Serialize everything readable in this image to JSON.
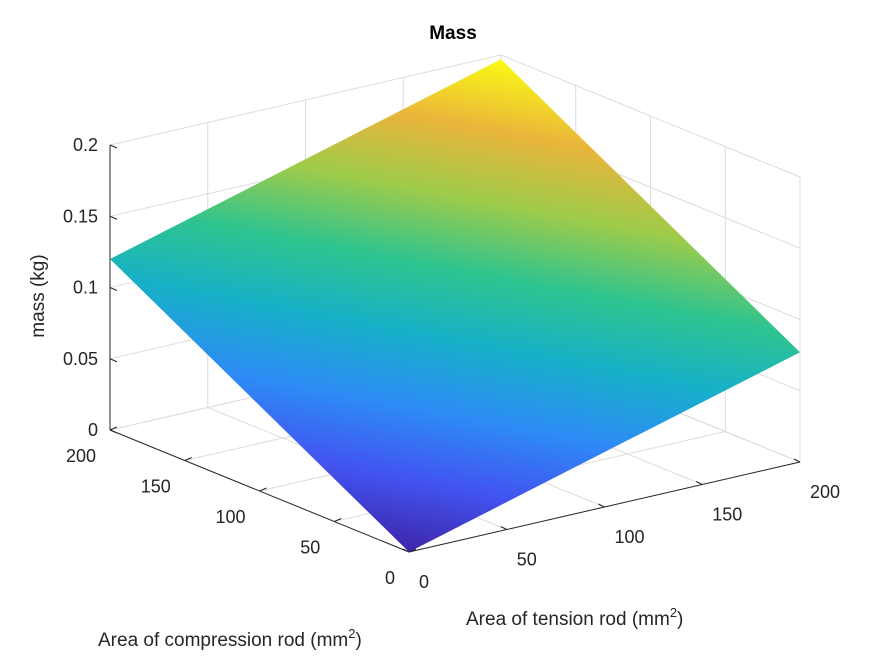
{
  "chart_data": {
    "type": "surface",
    "title": "Mass",
    "xlabel": {
      "text": "Area of tension rod (mm",
      "sup": "2",
      "tail": ")"
    },
    "ylabel": {
      "text": "Area of compression rod (mm",
      "sup": "2",
      "tail": ")"
    },
    "zlabel": "mass (kg)",
    "xlim": [
      0,
      200
    ],
    "ylim": [
      0,
      200
    ],
    "zlim": [
      0,
      0.2
    ],
    "x_ticks": [
      "0",
      "50",
      "100",
      "150",
      "200"
    ],
    "y_ticks": [
      "0",
      "50",
      "100",
      "150",
      "200"
    ],
    "z_ticks": [
      "0",
      "0.05",
      "0.1",
      "0.15",
      "0.2"
    ],
    "grid": true,
    "colormap": "parula",
    "colormap_stops": [
      "#3e26a8",
      "#4254f1",
      "#2d8cf5",
      "#17b0c8",
      "#2ec48f",
      "#9dcb4a",
      "#eab53b",
      "#f9fa14"
    ],
    "corners": [
      {
        "x": 0,
        "y": 0,
        "z": 0
      },
      {
        "x": 200,
        "y": 0,
        "z": 0.077
      },
      {
        "x": 0,
        "y": 200,
        "z": 0.12
      },
      {
        "x": 200,
        "y": 200,
        "z": 0.197
      }
    ]
  }
}
